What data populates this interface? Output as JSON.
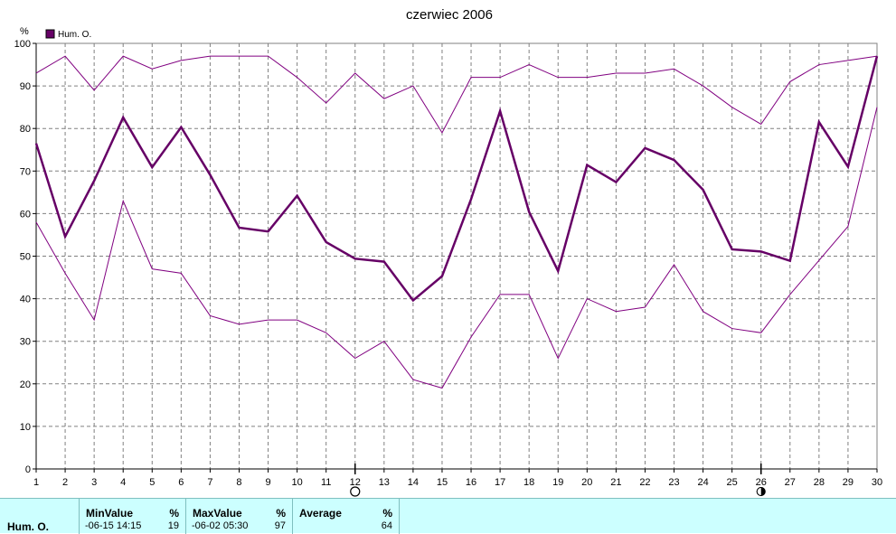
{
  "chart_data": {
    "type": "line",
    "title": "czerwiec 2006",
    "ylabel": "%",
    "ylim": [
      0,
      100
    ],
    "yticks": [
      0,
      10,
      20,
      30,
      40,
      50,
      60,
      70,
      80,
      90,
      100
    ],
    "x": [
      1,
      2,
      3,
      4,
      5,
      6,
      7,
      8,
      9,
      10,
      11,
      12,
      13,
      14,
      15,
      16,
      17,
      18,
      19,
      20,
      21,
      22,
      23,
      24,
      25,
      26,
      27,
      28,
      29,
      30
    ],
    "xlim": [
      1,
      30
    ],
    "grid": true,
    "legend": "top-left",
    "markers": [
      {
        "x": 12,
        "symbol": "new-moon-icon"
      },
      {
        "x": 26,
        "symbol": "full-moon-icon"
      }
    ],
    "series": [
      {
        "name": "Hum. O.",
        "role": "average",
        "color": "#660066",
        "width": 2.5,
        "values": [
          76.5,
          54.6,
          67.7,
          82.6,
          70.9,
          80.3,
          69.1,
          56.7,
          55.8,
          64.2,
          53.3,
          49.4,
          48.7,
          39.6,
          45.3,
          63.4,
          84.1,
          60.4,
          46.5,
          71.4,
          67.4,
          75.4,
          72.6,
          65.6,
          51.6,
          51.1,
          48.9,
          81.5,
          71.0,
          97.0
        ]
      },
      {
        "role": "max",
        "color": "#800080",
        "width": 1,
        "values": [
          93,
          97,
          89,
          97,
          94,
          96,
          97,
          97,
          97,
          92,
          86,
          93,
          87,
          90,
          79,
          92,
          92,
          95,
          92,
          92,
          93,
          93,
          94,
          90,
          85,
          81,
          91,
          95,
          96,
          97
        ]
      },
      {
        "role": "min",
        "color": "#800080",
        "width": 1,
        "values": [
          58,
          46,
          35,
          63,
          47,
          46,
          36,
          34,
          35,
          35,
          32,
          26,
          30,
          21,
          19,
          31,
          41,
          41,
          26,
          40,
          37,
          38,
          48,
          37,
          33,
          32,
          41,
          49,
          57,
          85
        ]
      }
    ]
  },
  "stats": {
    "series_label": "Hum. O.",
    "min": {
      "label": "MinValue",
      "unit": "%",
      "date": "-06-15  14:15",
      "value": "19"
    },
    "max": {
      "label": "MaxValue",
      "unit": "%",
      "date": "-06-02  05:30",
      "value": "97"
    },
    "avg": {
      "label": "Average",
      "unit": "%",
      "value": "64"
    }
  }
}
